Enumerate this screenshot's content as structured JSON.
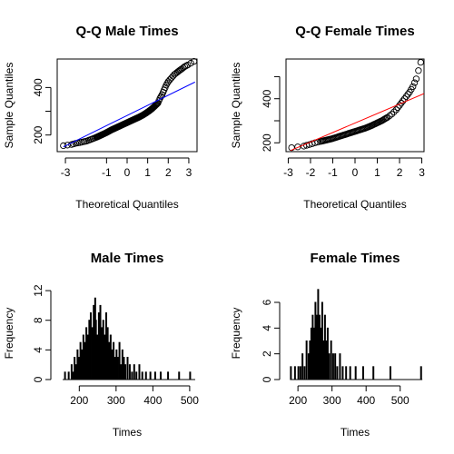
{
  "chart_data": [
    {
      "type": "scatter",
      "id": "qq-male",
      "title": "Q-Q Male Times",
      "xlabel": "Theoretical Quantiles",
      "ylabel": "Sample Quantiles",
      "xlim": [
        -3.4,
        3.4
      ],
      "ylim": [
        130,
        520
      ],
      "xticks": [
        -3,
        -1,
        0,
        1,
        2,
        3
      ],
      "yticks": [
        200,
        300,
        400
      ],
      "ytick_labels": [
        "200",
        "",
        "400"
      ],
      "point_style": "open-circle",
      "line": {
        "color": "#0000ff",
        "points": [
          [
            -3.1,
            150
          ],
          [
            3.3,
            423
          ]
        ]
      },
      "points": [
        [
          -3.1,
          155
        ],
        [
          -2.7,
          160
        ],
        [
          -2.5,
          165
        ],
        [
          -2.3,
          168
        ],
        [
          -2.1,
          172
        ],
        [
          -1.95,
          175
        ],
        [
          -1.8,
          180
        ],
        [
          -1.65,
          185
        ],
        [
          -1.5,
          190
        ],
        [
          -1.35,
          196
        ],
        [
          -1.2,
          202
        ],
        [
          -1.05,
          208
        ],
        [
          -0.9,
          215
        ],
        [
          -0.75,
          222
        ],
        [
          -0.6,
          228
        ],
        [
          -0.45,
          234
        ],
        [
          -0.3,
          240
        ],
        [
          -0.15,
          246
        ],
        [
          0,
          252
        ],
        [
          0.15,
          258
        ],
        [
          0.3,
          264
        ],
        [
          0.45,
          270
        ],
        [
          0.6,
          276
        ],
        [
          0.75,
          283
        ],
        [
          0.9,
          291
        ],
        [
          1.05,
          300
        ],
        [
          1.2,
          310
        ],
        [
          1.35,
          322
        ],
        [
          1.5,
          335
        ],
        [
          1.6,
          355
        ],
        [
          1.7,
          370
        ],
        [
          1.8,
          390
        ],
        [
          1.9,
          410
        ],
        [
          2.0,
          425
        ],
        [
          2.15,
          440
        ],
        [
          2.3,
          455
        ],
        [
          2.45,
          465
        ],
        [
          2.55,
          472
        ],
        [
          2.65,
          478
        ],
        [
          2.8,
          488
        ],
        [
          2.95,
          495
        ],
        [
          3.25,
          510
        ]
      ]
    },
    {
      "type": "scatter",
      "id": "qq-female",
      "title": "Q-Q Female Times",
      "xlabel": "Theoretical Quantiles",
      "ylabel": "Sample Quantiles",
      "xlim": [
        -3.1,
        3.1
      ],
      "ylim": [
        160,
        580
      ],
      "xticks": [
        -3,
        -2,
        -1,
        0,
        1,
        2,
        3
      ],
      "yticks": [
        200,
        300,
        400,
        500
      ],
      "ytick_labels": [
        "200",
        "",
        "400",
        ""
      ],
      "point_style": "open-circle",
      "line": {
        "color": "#ff0000",
        "points": [
          [
            -2.9,
            165
          ],
          [
            3.1,
            423
          ]
        ]
      },
      "points": [
        [
          -2.85,
          178
        ],
        [
          -2.3,
          185
        ],
        [
          -2.05,
          192
        ],
        [
          -1.8,
          200
        ],
        [
          -1.55,
          206
        ],
        [
          -1.3,
          212
        ],
        [
          -1.05,
          218
        ],
        [
          -0.8,
          226
        ],
        [
          -0.55,
          234
        ],
        [
          -0.3,
          242
        ],
        [
          -0.05,
          250
        ],
        [
          0.2,
          258
        ],
        [
          0.45,
          266
        ],
        [
          0.7,
          276
        ],
        [
          0.95,
          288
        ],
        [
          1.2,
          300
        ],
        [
          1.45,
          315
        ],
        [
          1.65,
          330
        ],
        [
          1.85,
          350
        ],
        [
          2.0,
          370
        ],
        [
          2.15,
          390
        ],
        [
          2.3,
          410
        ],
        [
          2.45,
          430
        ],
        [
          2.6,
          455
        ],
        [
          2.75,
          490
        ],
        [
          2.95,
          565
        ]
      ]
    },
    {
      "type": "bar",
      "id": "hist-male",
      "title": "Male Times",
      "xlabel": "Times",
      "ylabel": "Frequency",
      "xlim": [
        140,
        520
      ],
      "ylim": [
        0,
        12.5
      ],
      "xticks": [
        200,
        300,
        400,
        500
      ],
      "yticks": [
        0,
        4,
        8,
        12
      ],
      "ytick_labels": [
        "0",
        "4",
        "8",
        "12"
      ],
      "bin_width": 2,
      "bins": [
        [
          160,
          1
        ],
        [
          170,
          1
        ],
        [
          178,
          2
        ],
        [
          182,
          1
        ],
        [
          186,
          3
        ],
        [
          190,
          2
        ],
        [
          194,
          4
        ],
        [
          198,
          3
        ],
        [
          202,
          5
        ],
        [
          206,
          4
        ],
        [
          210,
          6
        ],
        [
          214,
          5
        ],
        [
          218,
          7
        ],
        [
          222,
          6
        ],
        [
          226,
          8
        ],
        [
          230,
          9
        ],
        [
          234,
          7
        ],
        [
          238,
          10
        ],
        [
          242,
          11
        ],
        [
          244,
          8
        ],
        [
          248,
          6
        ],
        [
          252,
          9
        ],
        [
          256,
          10
        ],
        [
          260,
          7
        ],
        [
          264,
          8
        ],
        [
          268,
          6
        ],
        [
          272,
          9
        ],
        [
          276,
          7
        ],
        [
          280,
          5
        ],
        [
          284,
          6
        ],
        [
          288,
          4
        ],
        [
          292,
          5
        ],
        [
          296,
          3
        ],
        [
          300,
          4
        ],
        [
          304,
          3
        ],
        [
          308,
          5
        ],
        [
          312,
          2
        ],
        [
          316,
          4
        ],
        [
          320,
          3
        ],
        [
          324,
          2
        ],
        [
          330,
          3
        ],
        [
          336,
          2
        ],
        [
          342,
          1
        ],
        [
          348,
          2
        ],
        [
          354,
          1
        ],
        [
          362,
          2
        ],
        [
          370,
          1
        ],
        [
          380,
          1
        ],
        [
          392,
          1
        ],
        [
          405,
          1
        ],
        [
          420,
          1
        ],
        [
          440,
          1
        ],
        [
          470,
          1
        ],
        [
          500,
          1
        ]
      ]
    },
    {
      "type": "bar",
      "id": "hist-female",
      "title": "Female Times",
      "xlabel": "Times",
      "ylabel": "Frequency",
      "xlim": [
        165,
        570
      ],
      "ylim": [
        0,
        7.2
      ],
      "xticks": [
        200,
        300,
        400,
        500
      ],
      "yticks": [
        0,
        2,
        4,
        6
      ],
      "ytick_labels": [
        "0",
        "2",
        "4",
        "6"
      ],
      "bin_width": 2,
      "bins": [
        [
          178,
          1
        ],
        [
          190,
          1
        ],
        [
          200,
          1
        ],
        [
          206,
          1
        ],
        [
          212,
          2
        ],
        [
          218,
          1
        ],
        [
          224,
          3
        ],
        [
          230,
          2
        ],
        [
          234,
          3
        ],
        [
          238,
          4
        ],
        [
          242,
          5
        ],
        [
          246,
          4
        ],
        [
          250,
          6
        ],
        [
          254,
          5
        ],
        [
          258,
          7
        ],
        [
          262,
          5
        ],
        [
          266,
          4
        ],
        [
          270,
          6
        ],
        [
          274,
          3
        ],
        [
          278,
          5
        ],
        [
          282,
          3
        ],
        [
          286,
          4
        ],
        [
          290,
          2
        ],
        [
          296,
          3
        ],
        [
          302,
          2
        ],
        [
          308,
          2
        ],
        [
          314,
          1
        ],
        [
          322,
          2
        ],
        [
          330,
          1
        ],
        [
          340,
          1
        ],
        [
          352,
          1
        ],
        [
          368,
          1
        ],
        [
          390,
          1
        ],
        [
          420,
          1
        ],
        [
          470,
          1
        ],
        [
          560,
          1
        ]
      ]
    }
  ]
}
